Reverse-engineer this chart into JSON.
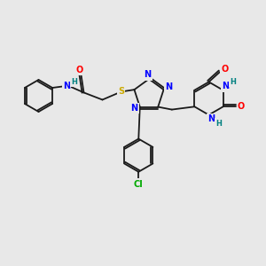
{
  "background_color": "#e8e8e8",
  "bond_color": "#1a1a1a",
  "atom_colors": {
    "N": "#0000ff",
    "O": "#ff0000",
    "S": "#ccaa00",
    "Cl": "#00aa00",
    "H": "#008080",
    "C": "#1a1a1a"
  },
  "figsize": [
    3.0,
    3.0
  ],
  "dpi": 100
}
